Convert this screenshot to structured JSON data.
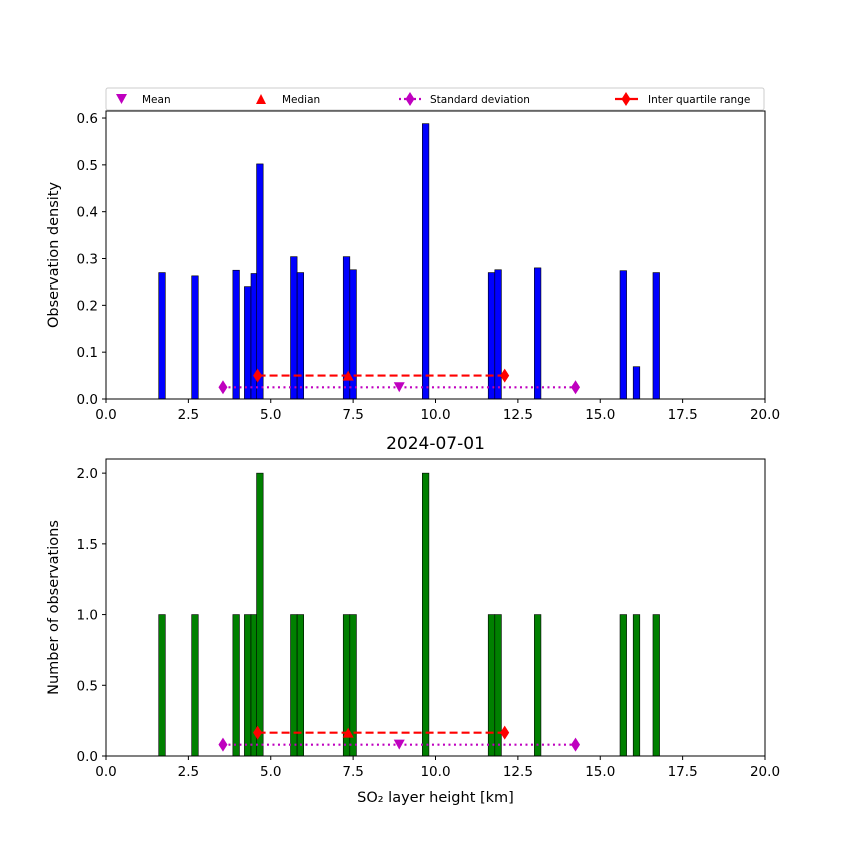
{
  "chart_data": [
    {
      "type": "bar",
      "panel": "top",
      "ylabel": "Observation density",
      "xlabel": "",
      "xlim": [
        0,
        20
      ],
      "ylim": [
        0,
        0.615
      ],
      "xticks": [
        "0.0",
        "2.5",
        "5.0",
        "7.5",
        "10.0",
        "12.5",
        "15.0",
        "17.5",
        "20.0"
      ],
      "xtick_values": [
        0,
        2.5,
        5,
        7.5,
        10,
        12.5,
        15,
        17.5,
        20
      ],
      "yticks": [
        "0.0",
        "0.1",
        "0.2",
        "0.3",
        "0.4",
        "0.5",
        "0.6"
      ],
      "ytick_values": [
        0,
        0.1,
        0.2,
        0.3,
        0.4,
        0.5,
        0.6
      ],
      "bar_color": "#0000ff",
      "bar_width": 0.2,
      "bars": [
        {
          "x": 1.7,
          "y": 0.27
        },
        {
          "x": 2.7,
          "y": 0.263
        },
        {
          "x": 3.95,
          "y": 0.275
        },
        {
          "x": 4.3,
          "y": 0.24
        },
        {
          "x": 4.5,
          "y": 0.268
        },
        {
          "x": 4.67,
          "y": 0.502
        },
        {
          "x": 5.7,
          "y": 0.304
        },
        {
          "x": 5.9,
          "y": 0.27
        },
        {
          "x": 7.3,
          "y": 0.304
        },
        {
          "x": 7.5,
          "y": 0.276
        },
        {
          "x": 9.7,
          "y": 0.588
        },
        {
          "x": 11.7,
          "y": 0.27
        },
        {
          "x": 11.9,
          "y": 0.276
        },
        {
          "x": 13.1,
          "y": 0.28
        },
        {
          "x": 15.7,
          "y": 0.274
        },
        {
          "x": 16.1,
          "y": 0.069
        },
        {
          "x": 16.7,
          "y": 0.27
        }
      ],
      "stats": {
        "mean": {
          "x": 8.9,
          "y": 0.025
        },
        "median": {
          "x": 7.35,
          "y": 0.05
        },
        "std": {
          "x0": 3.55,
          "x1": 14.25,
          "y": 0.025
        },
        "iqr": {
          "x0": 4.6,
          "x1": 12.1,
          "y": 0.05
        }
      }
    },
    {
      "type": "bar",
      "panel": "bottom",
      "title": "2024-07-01",
      "ylabel": "Number of observations",
      "xlabel": "SO₂ layer height [km]",
      "xlim": [
        0,
        20
      ],
      "ylim": [
        0,
        2.1
      ],
      "xticks": [
        "0.0",
        "2.5",
        "5.0",
        "7.5",
        "10.0",
        "12.5",
        "15.0",
        "17.5",
        "20.0"
      ],
      "xtick_values": [
        0,
        2.5,
        5,
        7.5,
        10,
        12.5,
        15,
        17.5,
        20
      ],
      "yticks": [
        "0.0",
        "0.5",
        "1.0",
        "1.5",
        "2.0"
      ],
      "ytick_values": [
        0,
        0.5,
        1.0,
        1.5,
        2.0
      ],
      "bar_color": "#008000",
      "bar_width": 0.2,
      "bars": [
        {
          "x": 1.7,
          "y": 1
        },
        {
          "x": 2.7,
          "y": 1
        },
        {
          "x": 3.95,
          "y": 1
        },
        {
          "x": 4.3,
          "y": 1
        },
        {
          "x": 4.5,
          "y": 1
        },
        {
          "x": 4.67,
          "y": 2
        },
        {
          "x": 5.7,
          "y": 1
        },
        {
          "x": 5.9,
          "y": 1
        },
        {
          "x": 7.3,
          "y": 1
        },
        {
          "x": 7.5,
          "y": 1
        },
        {
          "x": 9.7,
          "y": 2
        },
        {
          "x": 11.7,
          "y": 1
        },
        {
          "x": 11.9,
          "y": 1
        },
        {
          "x": 13.1,
          "y": 1
        },
        {
          "x": 15.7,
          "y": 1
        },
        {
          "x": 16.1,
          "y": 1
        },
        {
          "x": 16.7,
          "y": 1
        }
      ],
      "stats": {
        "mean": {
          "x": 8.9,
          "y": 0.08
        },
        "median": {
          "x": 7.35,
          "y": 0.165
        },
        "std": {
          "x0": 3.55,
          "x1": 14.25,
          "y": 0.08
        },
        "iqr": {
          "x0": 4.6,
          "x1": 12.1,
          "y": 0.165
        }
      }
    }
  ],
  "legend": {
    "placement": "top",
    "entries": [
      {
        "key": "mean",
        "label": "Mean",
        "marker": "triangle-down",
        "color": "#bf00bf"
      },
      {
        "key": "median",
        "label": "Median",
        "marker": "triangle-up",
        "color": "#ff0000"
      },
      {
        "key": "std",
        "label": "Standard deviation",
        "marker": "diamond-dotted-line",
        "color": "#bf00bf"
      },
      {
        "key": "iqr",
        "label": "Inter quartile range",
        "marker": "diamond-dashed-line",
        "color": "#ff0000"
      }
    ]
  },
  "colors": {
    "mean": "#bf00bf",
    "std": "#bf00bf",
    "median": "#ff0000",
    "iqr": "#ff0000"
  }
}
